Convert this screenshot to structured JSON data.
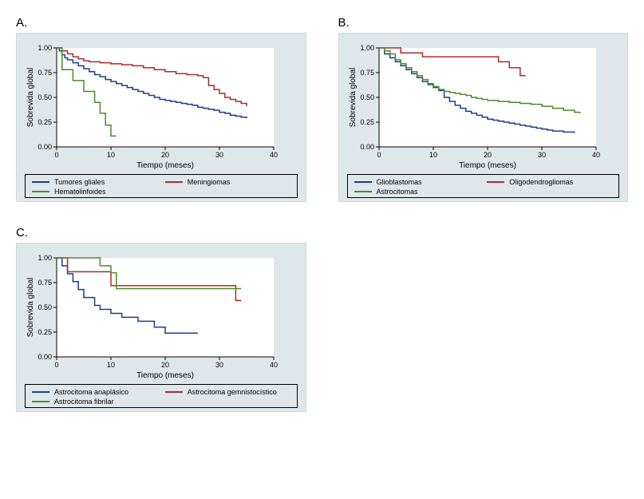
{
  "layout": {
    "panel_bg": "#e0e7eb",
    "plot_bg": "#ffffff",
    "axis_color": "#000000",
    "tick_font_size": 9,
    "axis_label_font_size": 10,
    "line_width": 1.5
  },
  "panels": [
    {
      "id": "A",
      "label": "A.",
      "xlabel": "Tiempo (meses)",
      "ylabel": "Sobrevida global",
      "xlim": [
        0,
        40
      ],
      "ylim": [
        0,
        1.0
      ],
      "xticks": [
        0,
        10,
        20,
        30,
        40
      ],
      "yticks": [
        0.0,
        0.25,
        0.5,
        0.75,
        1.0
      ],
      "ytick_labels": [
        "0.00",
        "0.25",
        "0.50",
        "0.75",
        "1.00"
      ],
      "series": [
        {
          "name": "Tumores gliales",
          "color": "#1a3e8c",
          "points": [
            [
              0,
              1.0
            ],
            [
              0.5,
              0.97
            ],
            [
              1,
              0.93
            ],
            [
              1.5,
              0.9
            ],
            [
              2,
              0.88
            ],
            [
              3,
              0.85
            ],
            [
              4,
              0.82
            ],
            [
              5,
              0.79
            ],
            [
              6,
              0.76
            ],
            [
              7,
              0.73
            ],
            [
              8,
              0.71
            ],
            [
              9,
              0.68
            ],
            [
              10,
              0.66
            ],
            [
              11,
              0.64
            ],
            [
              12,
              0.62
            ],
            [
              13,
              0.6
            ],
            [
              14,
              0.58
            ],
            [
              15,
              0.56
            ],
            [
              16,
              0.54
            ],
            [
              17,
              0.52
            ],
            [
              18,
              0.5
            ],
            [
              19,
              0.48
            ],
            [
              20,
              0.47
            ],
            [
              21,
              0.46
            ],
            [
              22,
              0.45
            ],
            [
              23,
              0.44
            ],
            [
              24,
              0.43
            ],
            [
              25,
              0.42
            ],
            [
              26,
              0.4
            ],
            [
              27,
              0.39
            ],
            [
              28,
              0.38
            ],
            [
              29,
              0.37
            ],
            [
              30,
              0.35
            ],
            [
              31,
              0.34
            ],
            [
              32,
              0.32
            ],
            [
              33,
              0.31
            ],
            [
              34,
              0.3
            ],
            [
              35,
              0.29
            ]
          ]
        },
        {
          "name": "Meningiomas",
          "color": "#b02a2a",
          "points": [
            [
              0,
              1.0
            ],
            [
              1,
              0.97
            ],
            [
              2,
              0.94
            ],
            [
              3,
              0.91
            ],
            [
              4,
              0.89
            ],
            [
              5,
              0.87
            ],
            [
              6,
              0.86
            ],
            [
              8,
              0.85
            ],
            [
              10,
              0.84
            ],
            [
              12,
              0.83
            ],
            [
              14,
              0.82
            ],
            [
              16,
              0.8
            ],
            [
              18,
              0.78
            ],
            [
              20,
              0.76
            ],
            [
              22,
              0.74
            ],
            [
              24,
              0.73
            ],
            [
              26,
              0.72
            ],
            [
              27,
              0.7
            ],
            [
              28,
              0.62
            ],
            [
              29,
              0.58
            ],
            [
              30,
              0.54
            ],
            [
              31,
              0.5
            ],
            [
              32,
              0.48
            ],
            [
              33,
              0.46
            ],
            [
              34,
              0.44
            ],
            [
              35,
              0.41
            ]
          ]
        },
        {
          "name": "Hematolinfoides",
          "color": "#4a8c2a",
          "points": [
            [
              0,
              1.0
            ],
            [
              1,
              0.78
            ],
            [
              3,
              0.78
            ],
            [
              3,
              0.67
            ],
            [
              5,
              0.67
            ],
            [
              5,
              0.56
            ],
            [
              7,
              0.56
            ],
            [
              7,
              0.45
            ],
            [
              8,
              0.45
            ],
            [
              8,
              0.34
            ],
            [
              9,
              0.34
            ],
            [
              9,
              0.22
            ],
            [
              10,
              0.22
            ],
            [
              10,
              0.11
            ],
            [
              11,
              0.11
            ]
          ]
        }
      ]
    },
    {
      "id": "B",
      "label": "B.",
      "xlabel": "Tiempo (meses)",
      "ylabel": "Sobrevida global",
      "xlim": [
        0,
        40
      ],
      "ylim": [
        0,
        1.0
      ],
      "xticks": [
        0,
        10,
        20,
        30,
        40
      ],
      "yticks": [
        0.0,
        0.25,
        0.5,
        0.75,
        1.0
      ],
      "ytick_labels": [
        "0.00",
        "0.25",
        "0.50",
        "0.75",
        "1.00"
      ],
      "series": [
        {
          "name": "Glioblastomas",
          "color": "#1a3e8c",
          "points": [
            [
              0,
              1.0
            ],
            [
              1,
              0.94
            ],
            [
              2,
              0.9
            ],
            [
              3,
              0.86
            ],
            [
              4,
              0.82
            ],
            [
              5,
              0.78
            ],
            [
              6,
              0.74
            ],
            [
              7,
              0.7
            ],
            [
              8,
              0.66
            ],
            [
              9,
              0.63
            ],
            [
              10,
              0.6
            ],
            [
              11,
              0.57
            ],
            [
              12,
              0.5
            ],
            [
              13,
              0.46
            ],
            [
              14,
              0.42
            ],
            [
              15,
              0.39
            ],
            [
              16,
              0.36
            ],
            [
              17,
              0.34
            ],
            [
              18,
              0.32
            ],
            [
              19,
              0.3
            ],
            [
              20,
              0.28
            ],
            [
              21,
              0.27
            ],
            [
              22,
              0.26
            ],
            [
              23,
              0.25
            ],
            [
              24,
              0.24
            ],
            [
              25,
              0.23
            ],
            [
              26,
              0.22
            ],
            [
              27,
              0.21
            ],
            [
              28,
              0.2
            ],
            [
              29,
              0.19
            ],
            [
              30,
              0.18
            ],
            [
              31,
              0.17
            ],
            [
              32,
              0.16
            ],
            [
              33,
              0.16
            ],
            [
              34,
              0.15
            ],
            [
              35,
              0.15
            ],
            [
              36,
              0.14
            ]
          ]
        },
        {
          "name": "Oligodendrogliomas",
          "color": "#b02a2a",
          "points": [
            [
              0,
              1.0
            ],
            [
              4,
              1.0
            ],
            [
              4,
              0.95
            ],
            [
              8,
              0.95
            ],
            [
              8,
              0.91
            ],
            [
              14,
              0.91
            ],
            [
              14,
              0.91
            ],
            [
              20,
              0.91
            ],
            [
              22,
              0.91
            ],
            [
              22,
              0.86
            ],
            [
              24,
              0.86
            ],
            [
              24,
              0.8
            ],
            [
              26,
              0.8
            ],
            [
              26,
              0.72
            ],
            [
              27,
              0.72
            ]
          ]
        },
        {
          "name": "Astrocitomas",
          "color": "#4a8c2a",
          "points": [
            [
              0,
              1.0
            ],
            [
              1,
              0.97
            ],
            [
              2,
              0.94
            ],
            [
              3,
              0.88
            ],
            [
              4,
              0.84
            ],
            [
              5,
              0.8
            ],
            [
              6,
              0.76
            ],
            [
              7,
              0.72
            ],
            [
              8,
              0.68
            ],
            [
              9,
              0.64
            ],
            [
              10,
              0.61
            ],
            [
              11,
              0.58
            ],
            [
              12,
              0.56
            ],
            [
              13,
              0.55
            ],
            [
              14,
              0.54
            ],
            [
              15,
              0.53
            ],
            [
              16,
              0.52
            ],
            [
              17,
              0.5
            ],
            [
              18,
              0.49
            ],
            [
              19,
              0.48
            ],
            [
              20,
              0.47
            ],
            [
              22,
              0.46
            ],
            [
              24,
              0.45
            ],
            [
              26,
              0.44
            ],
            [
              28,
              0.43
            ],
            [
              30,
              0.41
            ],
            [
              32,
              0.39
            ],
            [
              34,
              0.37
            ],
            [
              36,
              0.35
            ],
            [
              37,
              0.34
            ]
          ]
        }
      ]
    },
    {
      "id": "C",
      "label": "C.",
      "xlabel": "Tiempo (meses)",
      "ylabel": "Sobrevida global",
      "xlim": [
        0,
        40
      ],
      "ylim": [
        0,
        1.0
      ],
      "xticks": [
        0,
        10,
        20,
        30,
        40
      ],
      "yticks": [
        0.0,
        0.25,
        0.5,
        0.75,
        1.0
      ],
      "ytick_labels": [
        "0.00",
        "0.25",
        "0.50",
        "0.75",
        "1.00"
      ],
      "series": [
        {
          "name": "Astrocitoma anaplásico",
          "color": "#1a3e8c",
          "points": [
            [
              0,
              1.0
            ],
            [
              1,
              1.0
            ],
            [
              1,
              0.92
            ],
            [
              2,
              0.92
            ],
            [
              2,
              0.84
            ],
            [
              3,
              0.84
            ],
            [
              3,
              0.76
            ],
            [
              4,
              0.76
            ],
            [
              4,
              0.68
            ],
            [
              5,
              0.68
            ],
            [
              5,
              0.6
            ],
            [
              6,
              0.6
            ],
            [
              7,
              0.6
            ],
            [
              7,
              0.52
            ],
            [
              8,
              0.52
            ],
            [
              8,
              0.48
            ],
            [
              10,
              0.48
            ],
            [
              10,
              0.44
            ],
            [
              12,
              0.44
            ],
            [
              12,
              0.4
            ],
            [
              15,
              0.4
            ],
            [
              15,
              0.36
            ],
            [
              18,
              0.36
            ],
            [
              18,
              0.3
            ],
            [
              20,
              0.3
            ],
            [
              20,
              0.24
            ],
            [
              26,
              0.24
            ]
          ]
        },
        {
          "name": "Astrocitoma gemnistocístico",
          "color": "#b02a2a",
          "points": [
            [
              0,
              1.0
            ],
            [
              2,
              1.0
            ],
            [
              2,
              0.86
            ],
            [
              10,
              0.86
            ],
            [
              10,
              0.72
            ],
            [
              33,
              0.72
            ],
            [
              33,
              0.57
            ],
            [
              34,
              0.57
            ]
          ]
        },
        {
          "name": "Astrocitoma fibrilar",
          "color": "#4a8c2a",
          "points": [
            [
              0,
              1.0
            ],
            [
              8,
              1.0
            ],
            [
              8,
              0.92
            ],
            [
              10,
              0.92
            ],
            [
              10,
              0.85
            ],
            [
              11,
              0.85
            ],
            [
              11,
              0.69
            ],
            [
              34,
              0.69
            ]
          ]
        }
      ]
    }
  ]
}
